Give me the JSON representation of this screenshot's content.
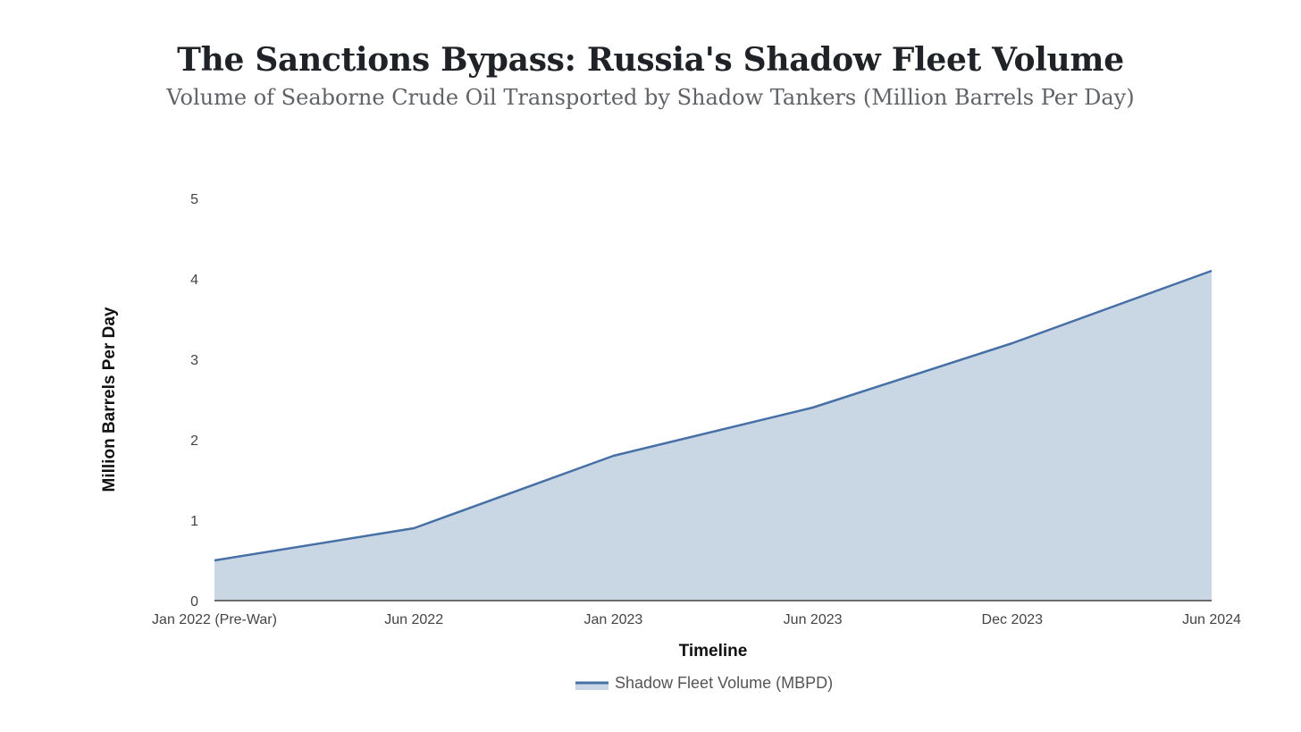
{
  "chart_data": {
    "type": "area",
    "title": "The Sanctions Bypass: Russia's Shadow Fleet Volume",
    "subtitle": "Volume of Seaborne Crude Oil Transported by Shadow Tankers (Million Barrels Per Day)",
    "xlabel": "Timeline",
    "ylabel": "Million Barrels Per Day",
    "categories": [
      "Jan 2022 (Pre-War)",
      "Jun 2022",
      "Jan 2023",
      "Jun 2023",
      "Dec 2023",
      "Jun 2024"
    ],
    "series": [
      {
        "name": "Shadow Fleet Volume (MBPD)",
        "values": [
          0.5,
          0.9,
          1.8,
          2.4,
          3.2,
          4.1
        ],
        "line_color": "#4670a6",
        "fill_color": "#c9d7e5"
      }
    ],
    "ylim": [
      0,
      5
    ],
    "yticks": [
      0,
      1,
      2,
      3,
      4,
      5
    ],
    "grid": false,
    "legend_position": "bottom-center"
  }
}
